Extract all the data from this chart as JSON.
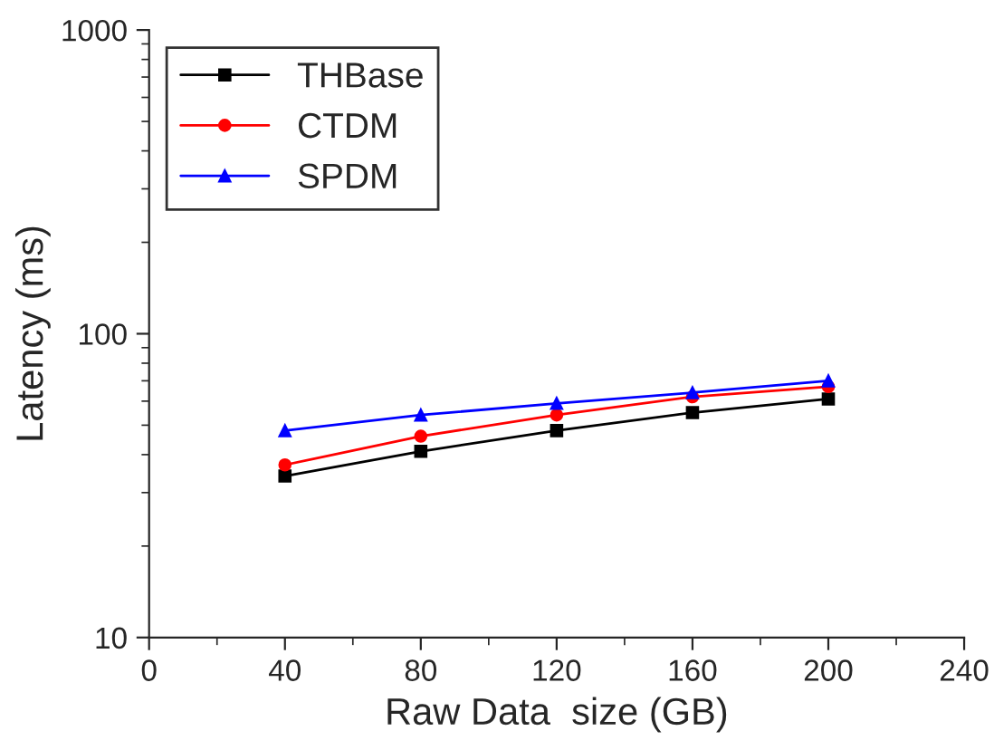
{
  "chart_data": {
    "type": "line",
    "xlabel": "Raw Data  size (GB)",
    "ylabel": "Latency (ms)",
    "x": [
      40,
      80,
      120,
      160,
      200
    ],
    "series": [
      {
        "name": "THBase",
        "color": "#000000",
        "marker": "square",
        "values": [
          34,
          41,
          48,
          55,
          61
        ]
      },
      {
        "name": "CTDM",
        "color": "#ff0000",
        "marker": "circle",
        "values": [
          37,
          46,
          54,
          62,
          67
        ]
      },
      {
        "name": "SPDM",
        "color": "#0000ff",
        "marker": "triangle",
        "values": [
          48,
          54,
          59,
          64,
          70
        ]
      }
    ],
    "log": "y",
    "xlim": [
      0,
      240
    ],
    "xticks": [
      0,
      40,
      80,
      120,
      160,
      200,
      240
    ],
    "ylim": [
      10,
      1000
    ],
    "yticks": [
      10,
      100,
      1000
    ],
    "grid": false,
    "legend": "top left",
    "line_style": "solid"
  }
}
